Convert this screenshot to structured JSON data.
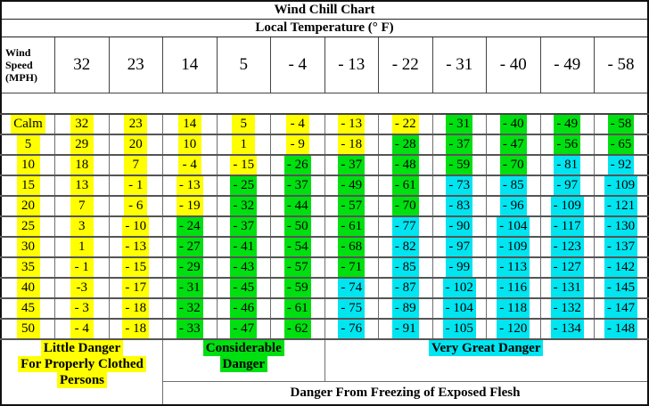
{
  "title": "Wind Chill Chart",
  "subtitle": "Local Temperature (° F)",
  "corner_header": [
    "Wind",
    "Speed",
    "(MPH)"
  ],
  "colors": {
    "yellow": "#FFFF00",
    "green": "#00DF10",
    "cyan": "#00E5F0"
  },
  "chart_data": {
    "type": "table",
    "title": "Wind Chill Chart",
    "subtitle": "Local Temperature (° F)",
    "row_header_label": "Wind Speed (MPH)",
    "columns": [
      "32",
      "23",
      "14",
      "5",
      "- 4",
      "- 13",
      "- 22",
      "- 31",
      "- 40",
      "- 49",
      "- 58"
    ],
    "highlight_legend": {
      "y": "yellow = little danger",
      "g": "green = considerable danger",
      "c": "cyan = very great danger"
    },
    "rows": [
      {
        "speed": "Calm",
        "values": [
          "32",
          "23",
          "14",
          "5",
          "- 4",
          "- 13",
          "- 22",
          "- 31",
          "- 40",
          "- 49",
          "- 58"
        ],
        "highlights": [
          "y",
          "y",
          "y",
          "y",
          "y",
          "y",
          "y",
          "g",
          "g",
          "g",
          "g"
        ]
      },
      {
        "speed": "5",
        "values": [
          "29",
          "20",
          "10",
          "1",
          "- 9",
          "- 18",
          "- 28",
          "- 37",
          "- 47",
          "- 56",
          "- 65"
        ],
        "highlights": [
          "y",
          "y",
          "y",
          "y",
          "y",
          "y",
          "g",
          "g",
          "g",
          "g",
          "g"
        ]
      },
      {
        "speed": "10",
        "values": [
          "18",
          "7",
          "- 4",
          "- 15",
          "- 26",
          "- 37",
          "- 48",
          "- 59",
          "- 70",
          "- 81",
          "- 92"
        ],
        "highlights": [
          "y",
          "y",
          "y",
          "y",
          "g",
          "g",
          "g",
          "g",
          "g",
          "c",
          "c"
        ]
      },
      {
        "speed": "15",
        "values": [
          "13",
          "- 1",
          "- 13",
          "- 25",
          "- 37",
          "- 49",
          "- 61",
          "- 73",
          "- 85",
          "- 97",
          "- 109"
        ],
        "highlights": [
          "y",
          "y",
          "y",
          "g",
          "g",
          "g",
          "g",
          "c",
          "c",
          "c",
          "c"
        ]
      },
      {
        "speed": "20",
        "values": [
          "7",
          "- 6",
          "- 19",
          "- 32",
          "- 44",
          "- 57",
          "- 70",
          "- 83",
          "- 96",
          "- 109",
          "- 121"
        ],
        "highlights": [
          "y",
          "y",
          "y",
          "g",
          "g",
          "g",
          "g",
          "c",
          "c",
          "c",
          "c"
        ]
      },
      {
        "speed": "25",
        "values": [
          "3",
          "- 10",
          "- 24",
          "- 37",
          "- 50",
          "- 61",
          "- 77",
          "- 90",
          "- 104",
          "- 117",
          "- 130"
        ],
        "highlights": [
          "y",
          "y",
          "g",
          "g",
          "g",
          "g",
          "c",
          "c",
          "c",
          "c",
          "c"
        ]
      },
      {
        "speed": "30",
        "values": [
          "1",
          "- 13",
          "- 27",
          "- 41",
          "- 54",
          "- 68",
          "- 82",
          "- 97",
          "- 109",
          "- 123",
          "- 137"
        ],
        "highlights": [
          "y",
          "y",
          "g",
          "g",
          "g",
          "g",
          "c",
          "c",
          "c",
          "c",
          "c"
        ]
      },
      {
        "speed": "35",
        "values": [
          "- 1",
          "- 15",
          "- 29",
          "- 43",
          "- 57",
          "- 71",
          "- 85",
          "- 99",
          "- 113",
          "- 127",
          "- 142"
        ],
        "highlights": [
          "y",
          "y",
          "g",
          "g",
          "g",
          "g",
          "c",
          "c",
          "c",
          "c",
          "c"
        ]
      },
      {
        "speed": "40",
        "values": [
          "-3",
          "- 17",
          "- 31",
          "- 45",
          "- 59",
          "- 74",
          "- 87",
          "- 102",
          "- 116",
          "- 131",
          "- 145"
        ],
        "highlights": [
          "y",
          "y",
          "g",
          "g",
          "g",
          "c",
          "c",
          "c",
          "c",
          "c",
          "c"
        ]
      },
      {
        "speed": "45",
        "values": [
          "- 3",
          "- 18",
          "- 32",
          "- 46",
          "- 61",
          "- 75",
          "- 89",
          "- 104",
          "- 118",
          "- 132",
          "- 147"
        ],
        "highlights": [
          "y",
          "y",
          "g",
          "g",
          "g",
          "c",
          "c",
          "c",
          "c",
          "c",
          "c"
        ]
      },
      {
        "speed": "50",
        "values": [
          "- 4",
          "- 18",
          "- 33",
          "- 47",
          "- 62",
          "- 76",
          "- 91",
          "- 105",
          "- 120",
          "- 134",
          "- 148"
        ],
        "highlights": [
          "y",
          "y",
          "g",
          "g",
          "g",
          "c",
          "c",
          "c",
          "c",
          "c",
          "c"
        ]
      }
    ]
  },
  "footer": {
    "little_danger_lines": [
      "Little Danger",
      "For Properly Clothed",
      "Persons"
    ],
    "considerable_lines": [
      "Considerable",
      "Danger"
    ],
    "very_great": "Very Great Danger",
    "freezing": "Danger From Freezing of Exposed Flesh"
  }
}
